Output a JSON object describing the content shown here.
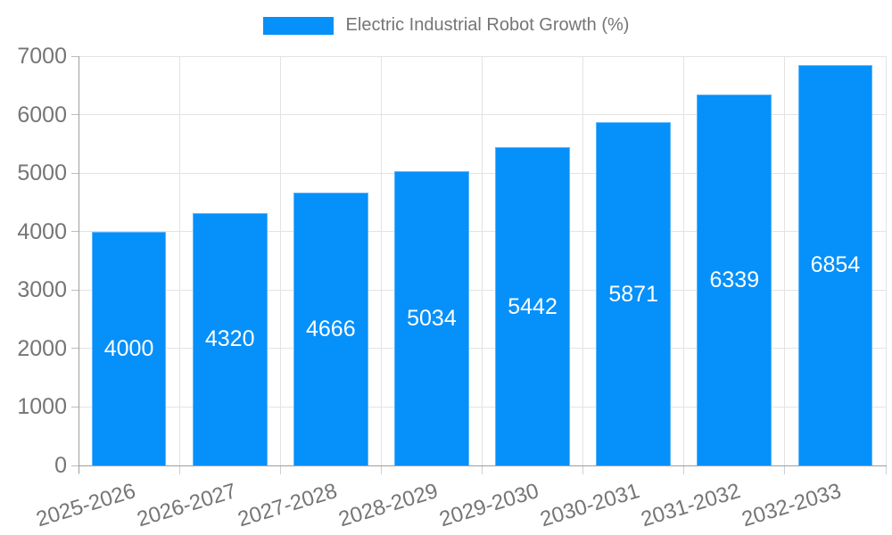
{
  "legend": {
    "label": "Electric Industrial Robot Growth (%)",
    "swatch_color": "#0690fa"
  },
  "chart_data": {
    "type": "bar",
    "title": "Electric Industrial Robot Growth (%)",
    "categories": [
      "2025-2026",
      "2026-2027",
      "2027-2028",
      "2028-2029",
      "2029-2030",
      "2030-2031",
      "2031-2032",
      "2032-2033"
    ],
    "values": [
      4000,
      4320,
      4666,
      5034,
      5442,
      5871,
      6339,
      6854
    ],
    "xlabel": "",
    "ylabel": "",
    "ylim": [
      0,
      7000
    ],
    "yticks": [
      0,
      1000,
      2000,
      3000,
      4000,
      5000,
      6000,
      7000
    ],
    "grid": true,
    "legend_position": "top-center",
    "x_label_rotation_deg": -17,
    "bar_color": "#0690fa",
    "value_label_color": "#ffffff",
    "axis_text_color": "#757575",
    "gridline_color": "#e3e3e3",
    "axis_line_color": "#9e9e9e"
  }
}
